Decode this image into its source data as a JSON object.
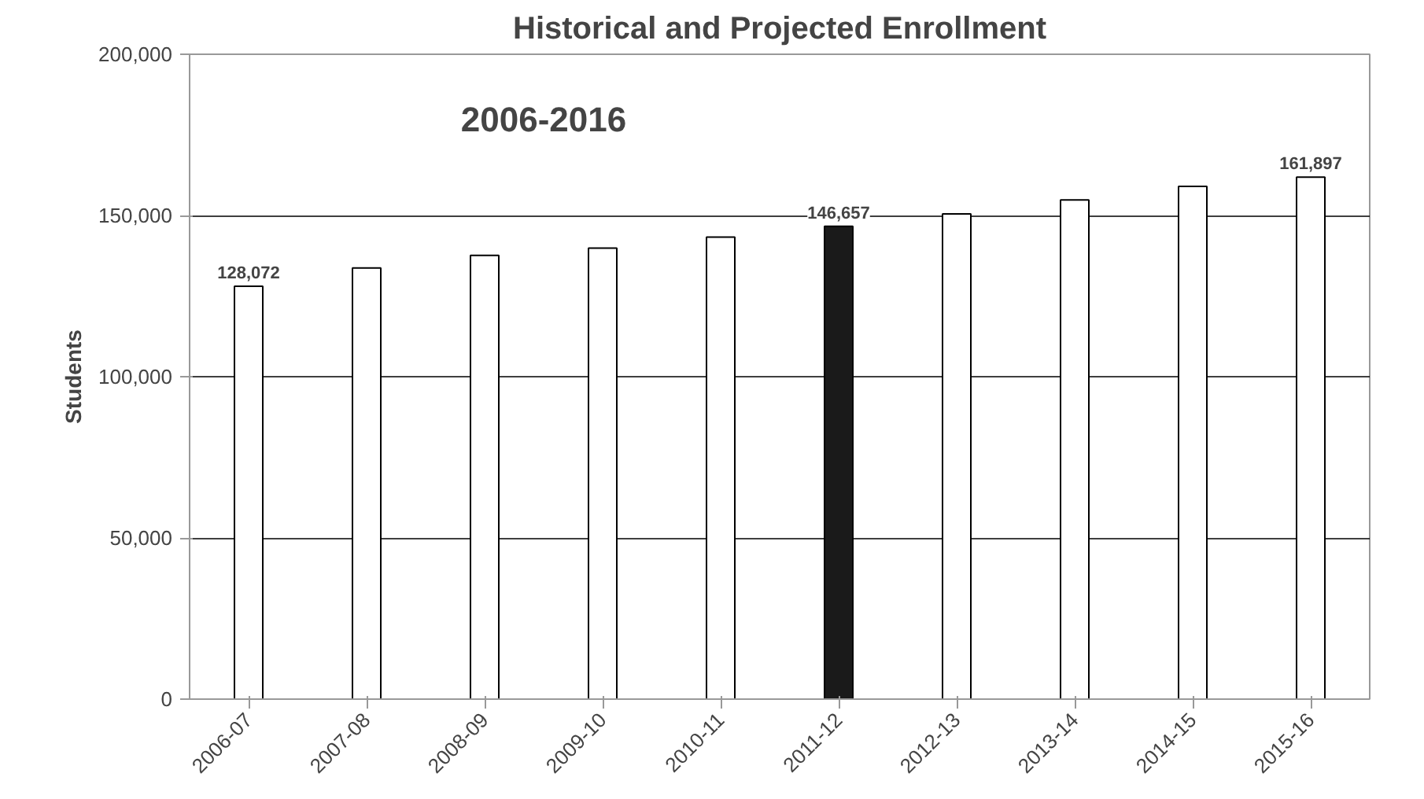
{
  "chart_data": {
    "type": "bar",
    "title": "Historical and Projected Enrollment",
    "ylabel": "Students",
    "annotations": [
      "2006-2016"
    ],
    "categories": [
      "2006-07",
      "2007-08",
      "2008-09",
      "2009-10",
      "2010-11",
      "2011-12",
      "2012-13",
      "2013-14",
      "2014-15",
      "2015-16"
    ],
    "values": [
      128072,
      133700,
      137600,
      139900,
      143300,
      146657,
      150500,
      154800,
      159000,
      161897
    ],
    "colors": [
      "#ffffff",
      "#ffffff",
      "#ffffff",
      "#ffffff",
      "#ffffff",
      "#1a1a1a",
      "#ffffff",
      "#ffffff",
      "#ffffff",
      "#ffffff"
    ],
    "value_labels": [
      "128,072",
      null,
      null,
      null,
      null,
      "146,657",
      null,
      null,
      null,
      "161,897"
    ],
    "ylim": [
      0,
      200000
    ],
    "yticks": [
      {
        "value": 0,
        "label": "0"
      },
      {
        "value": 50000,
        "label": "50,000"
      },
      {
        "value": 100000,
        "label": "100,000"
      },
      {
        "value": 150000,
        "label": "150,000"
      },
      {
        "value": 200000,
        "label": "200,000"
      }
    ],
    "grid": "y"
  }
}
